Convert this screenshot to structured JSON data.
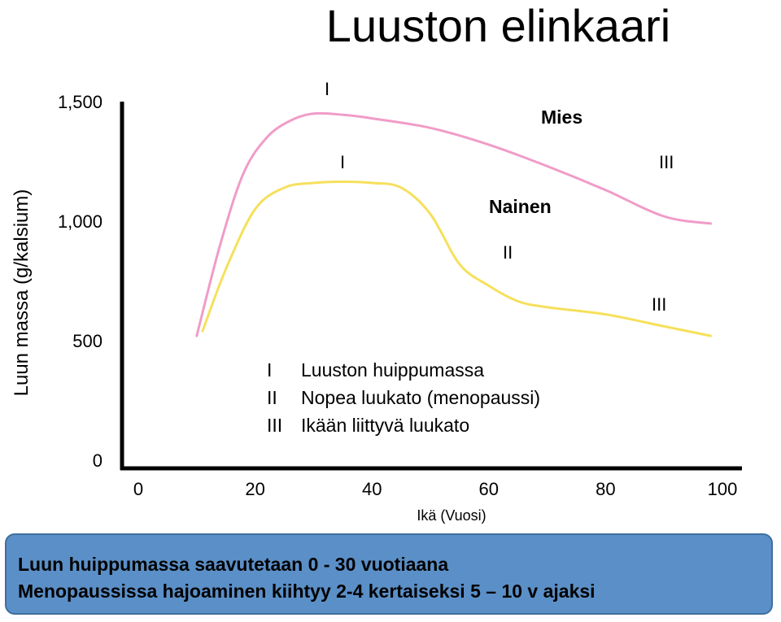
{
  "chart_data": {
    "type": "line",
    "title": "Luuston elinkaari",
    "xlabel": "Ikä (Vuosi)",
    "ylabel": "Luun massa (g/kalsium)",
    "xlim": [
      0,
      100
    ],
    "ylim": [
      0,
      1500
    ],
    "x_ticks": [
      "0",
      "20",
      "40",
      "60",
      "80",
      "100"
    ],
    "y_ticks": [
      "0",
      "500",
      "1,000",
      "1,500"
    ],
    "series": [
      {
        "name": "Mies",
        "color": "#f09cc8",
        "x": [
          10,
          14,
          18,
          22,
          26,
          30,
          35,
          40,
          50,
          60,
          70,
          80,
          90,
          98
        ],
        "y": [
          520,
          900,
          1200,
          1350,
          1420,
          1450,
          1445,
          1430,
          1390,
          1320,
          1230,
          1130,
          1020,
          990
        ]
      },
      {
        "name": "Nainen",
        "color": "#f6e05c",
        "x": [
          11,
          15,
          20,
          25,
          30,
          35,
          40,
          45,
          50,
          55,
          60,
          65,
          70,
          80,
          90,
          98
        ],
        "y": [
          540,
          800,
          1050,
          1140,
          1160,
          1165,
          1160,
          1140,
          1030,
          820,
          730,
          665,
          640,
          610,
          560,
          520
        ]
      }
    ],
    "annotations": [
      {
        "text": "I",
        "series": "Mies"
      },
      {
        "text": "I",
        "series": "Nainen"
      },
      {
        "text": "II",
        "series": "Nainen"
      },
      {
        "text": "III",
        "series": "Mies"
      },
      {
        "text": "III",
        "series": "Nainen"
      }
    ],
    "legend": [
      {
        "key": "I",
        "text": "Luuston huippumassa"
      },
      {
        "key": "II",
        "text": "Nopea luukato (menopaussi)"
      },
      {
        "key": "III",
        "text": "Ikään liittyvä luukato"
      }
    ]
  },
  "footer": {
    "line1": "Luun huippumassa saavutetaan 0 - 30 vuotiaana",
    "line2": "Menopaussissa hajoaminen kiihtyy 2-4 kertaiseksi 5 – 10 v ajaksi"
  }
}
